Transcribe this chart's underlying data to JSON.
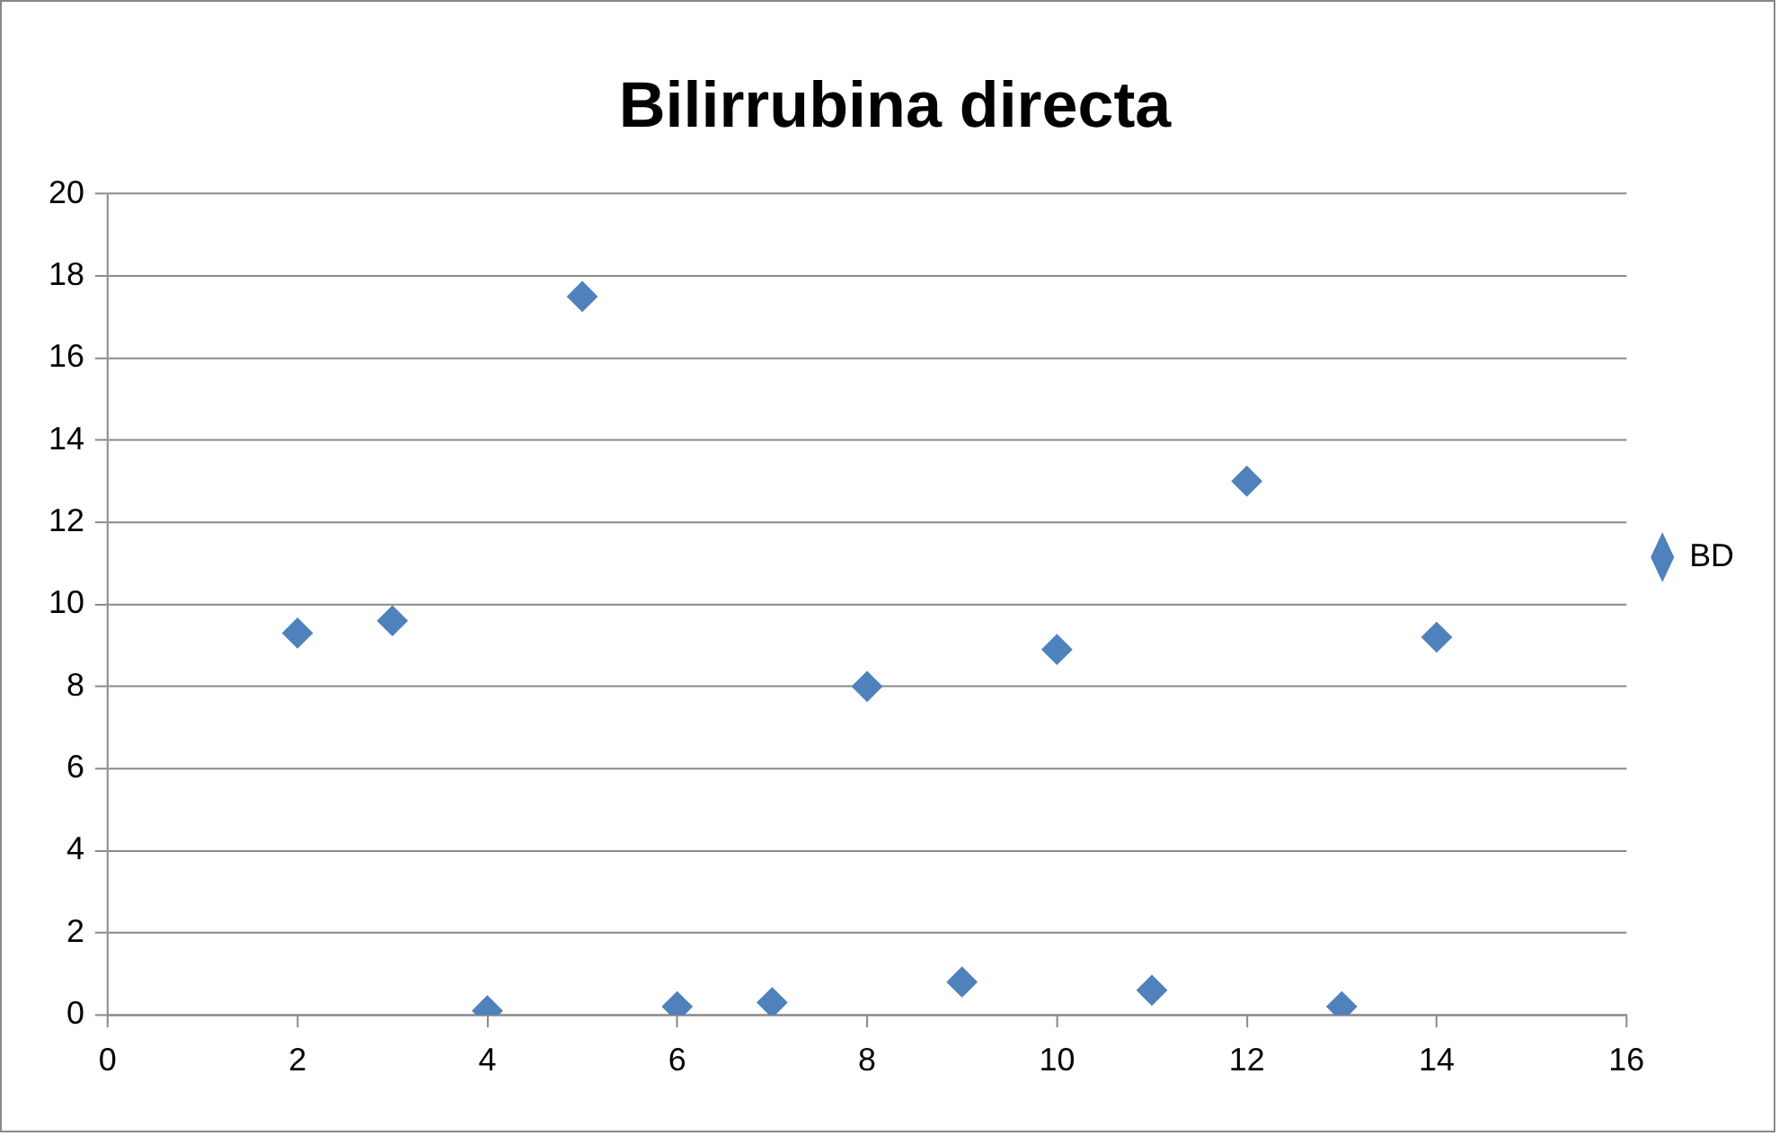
{
  "chart_data": {
    "type": "scatter",
    "title": "Bilirrubina directa",
    "x": [
      2,
      3,
      4,
      5,
      6,
      7,
      8,
      9,
      10,
      11,
      12,
      13,
      14
    ],
    "series": [
      {
        "name": "BD",
        "color": "#4f81bd",
        "values": [
          9.3,
          9.6,
          0.1,
          17.5,
          0.2,
          0.3,
          8.0,
          0.8,
          8.9,
          0.6,
          13.0,
          0.2,
          9.2
        ]
      }
    ],
    "xlim": [
      0,
      16
    ],
    "xticks": [
      0,
      2,
      4,
      6,
      8,
      10,
      12,
      14,
      16
    ],
    "ylim": [
      0,
      20
    ],
    "yticks": [
      0,
      2,
      4,
      6,
      8,
      10,
      12,
      14,
      16,
      18,
      20
    ],
    "grid": "y",
    "legend": "right",
    "marker": "diamond"
  }
}
